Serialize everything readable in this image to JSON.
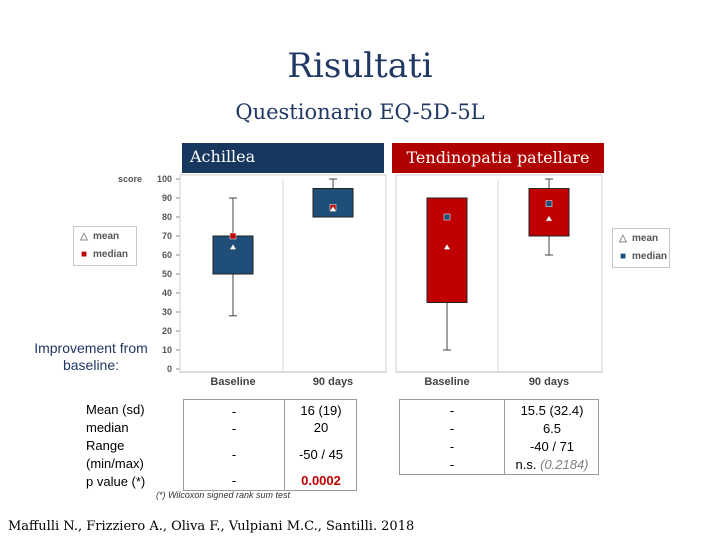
{
  "slide": {
    "title": "Risultati",
    "subtitle": "Questionario EQ-5D-5L"
  },
  "groups": {
    "achillea": "Achillea",
    "patellare": "Tendinopatia patellare"
  },
  "legend": {
    "mean": "mean",
    "median": "median",
    "mean_symbol": "△",
    "median_symbol": "■"
  },
  "chart_data": {
    "type": "box",
    "ylabel": "score",
    "ylim": [
      0,
      100
    ],
    "yticks": [
      0,
      10,
      20,
      30,
      40,
      50,
      60,
      70,
      80,
      90,
      100
    ],
    "categories": [
      "Baseline",
      "90 days"
    ],
    "grid": false,
    "colors": {
      "achillea": "#1f4e79",
      "patellare": "#c00000"
    },
    "panels": [
      {
        "group": "achillea",
        "boxes": [
          {
            "category": "Baseline",
            "min": 28,
            "q1": 50,
            "median": 70,
            "q3": 70,
            "max": 90,
            "mean": 64,
            "marker": 70
          },
          {
            "category": "90 days",
            "min": 80,
            "q1": 80,
            "median": 85,
            "q3": 95,
            "max": 100,
            "mean": 84,
            "marker": 85
          }
        ]
      },
      {
        "group": "patellare",
        "boxes": [
          {
            "category": "Baseline",
            "min": 10,
            "q1": 35,
            "median": 80,
            "q3": 90,
            "max": 90,
            "mean": 64,
            "marker": 80
          },
          {
            "category": "90 days",
            "min": 60,
            "q1": 70,
            "median": 87,
            "q3": 95,
            "max": 100,
            "mean": 79,
            "marker": 87
          }
        ]
      }
    ]
  },
  "improvement_label": "Improvement from baseline:",
  "stats": {
    "labels": [
      "Mean (sd)",
      "median",
      "Range",
      "(min/max)",
      "p value (*)"
    ],
    "achillea": {
      "dashes": [
        "-",
        "-",
        "-",
        "-"
      ],
      "mean_sd": "16 (19)",
      "median": "20",
      "range": "-50 / 45",
      "p_value": "0.0002"
    },
    "patellare": {
      "dashes": [
        "-",
        "-",
        "-",
        "-"
      ],
      "mean_sd": "15.5 (32.4)",
      "median": "6.5",
      "range": "-40 / 71",
      "p_prefix": "n.s.",
      "p_value": "(0.2184)"
    },
    "p_color": "#c00000",
    "ns_color": "#808080"
  },
  "footnote": "(*) Wilcoxon signed rank sum test",
  "citation": "Maffulli N., Frizziero A., Oliva F., Vulpiani M.C., Santilli. 2018"
}
